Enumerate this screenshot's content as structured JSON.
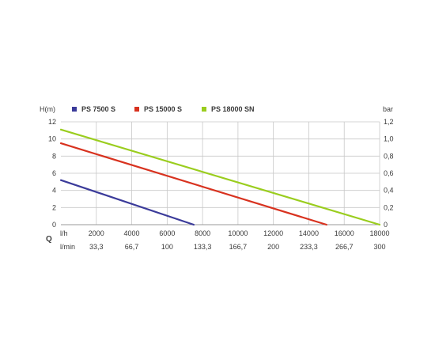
{
  "chart_data": {
    "type": "line",
    "title": "",
    "ylabel_left": "H(m)",
    "ylabel_right": "bar",
    "x_axis_symbol": "Q",
    "x_unit_primary": "l/h",
    "x_unit_secondary": "l/min",
    "xlim": [
      0,
      18000
    ],
    "ylim": [
      0,
      12
    ],
    "ylim_right": [
      0,
      1.2
    ],
    "x_ticks": [
      "2000",
      "4000",
      "6000",
      "8000",
      "10000",
      "12000",
      "14000",
      "16000",
      "18000"
    ],
    "x_ticks_values": [
      2000,
      4000,
      6000,
      8000,
      10000,
      12000,
      14000,
      16000,
      18000
    ],
    "x_ticks_secondary": [
      "33,3",
      "66,7",
      "100",
      "133,3",
      "166,7",
      "200",
      "233,3",
      "266,7",
      "300"
    ],
    "y_ticks_left": [
      "0",
      "2",
      "4",
      "6",
      "8",
      "10",
      "12"
    ],
    "y_ticks_left_values": [
      0,
      2,
      4,
      6,
      8,
      10,
      12
    ],
    "y_ticks_right": [
      "0",
      "0,2",
      "0,4",
      "0,6",
      "0,8",
      "1,0",
      "1,2"
    ],
    "grid": true,
    "legend_position": "top",
    "series": [
      {
        "name": "PS 7500 S",
        "color": "#3b3b9a",
        "x": [
          0,
          7500
        ],
        "y": [
          5.2,
          0
        ]
      },
      {
        "name": "PS 15000 S",
        "color": "#d8321f",
        "x": [
          0,
          15000
        ],
        "y": [
          9.5,
          0
        ]
      },
      {
        "name": "PS 18000 SN",
        "color": "#9acd1e",
        "x": [
          0,
          18000
        ],
        "y": [
          11.1,
          0
        ]
      }
    ]
  }
}
